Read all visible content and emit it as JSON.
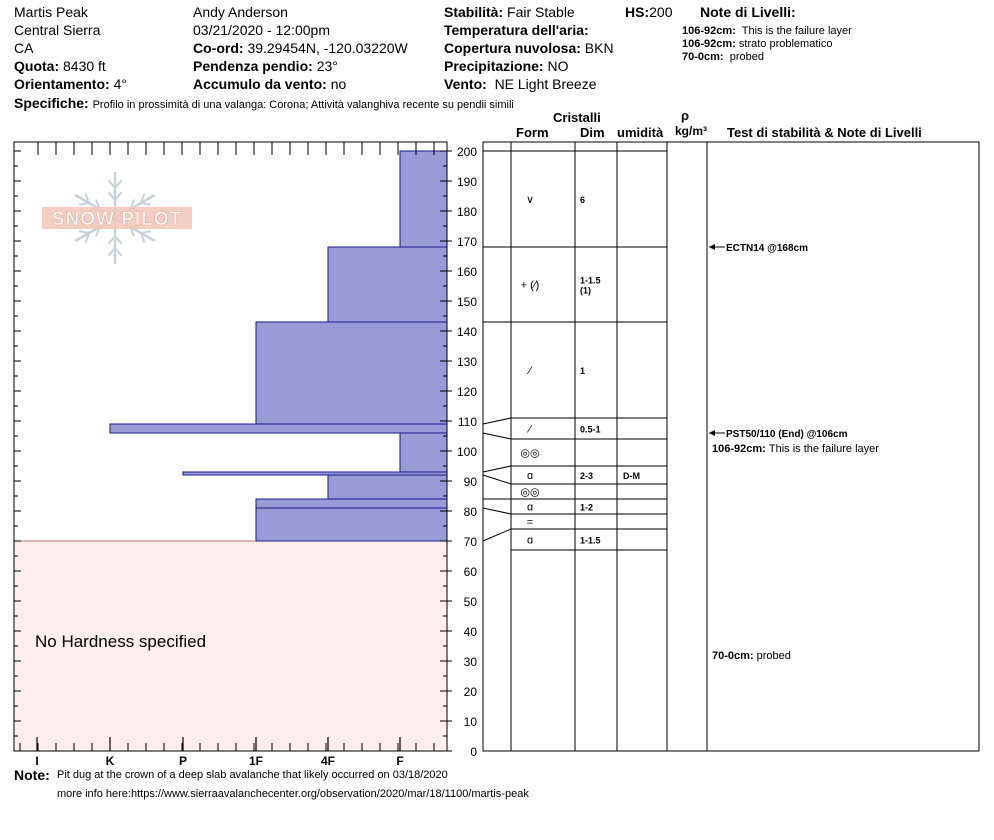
{
  "header": {
    "location": "Martis Peak",
    "range": "Central Sierra",
    "state": "CA",
    "elevation_label": "Quota:",
    "elevation_value": "8430 ft",
    "aspect_label": "Orientamento:",
    "aspect_value": "4°",
    "observer": "Andy Anderson",
    "datetime": "03/21/2020 - 12:00pm",
    "coord_label": "Co-ord:",
    "coord_value": "39.29454N, -120.03220W",
    "slope_label": "Pendenza pendio:",
    "slope_value": "23°",
    "wind_loading_label": "Accumulo da vento:",
    "wind_loading_value": "no",
    "stability_label": "Stabilità:",
    "stability_value": "Fair Stable",
    "hs_label": "HS:",
    "hs_value": "200",
    "air_temp_label": "Temperatura dell'aria:",
    "sky_label": "Copertura nuvolosa:",
    "sky_value": "BKN",
    "precip_label": "Precipitazione:",
    "precip_value": "NO",
    "wind_label": "Vento:",
    "wind_value": "NE Light Breeze",
    "layer_notes_title": "Note di Livelli:",
    "layer_notes": [
      {
        "range": "106-92cm:",
        "text": "This is the failure layer"
      },
      {
        "range": "106-92cm:",
        "text": "strato problematico"
      },
      {
        "range": "70-0cm:",
        "text": "probed"
      }
    ],
    "specifics_label": "Specifiche:",
    "specifics_value": "Profilo in prossimità di una valanga: Corona;  Attività valanghiva recente su pendii simili"
  },
  "columns": {
    "crystals": "Cristalli",
    "form": "Form",
    "size": "Dim",
    "moisture": "umidità",
    "rho": "ρ",
    "density_unit": "kg/m³",
    "tests": "Test di stabilità & Note di Livelli"
  },
  "logo": "SNOW PILOT",
  "no_hardness_label": "No Hardness specified",
  "footer": {
    "label": "Note:",
    "line1": "Pit dug at the crown of a deep slab avalanche that likely occurred on 03/18/2020",
    "line2": "more info here:https://www.sierraavalanchecenter.org/observation/2020/mar/18/1100/martis-peak"
  },
  "tests": [
    {
      "text": "ECTN14 @168cm",
      "depth": 168
    },
    {
      "text": "PST50/110 (End) @106cm",
      "depth": 106
    }
  ],
  "notes_right": [
    {
      "range": "106-92cm:",
      "text": "This is the failure layer",
      "depth": 101
    },
    {
      "range": "70-0cm:",
      "text": "probed",
      "depth": 32
    }
  ],
  "colors": {
    "hardness_fill": "#9a9ad6",
    "hardness_stroke": "#1a1a8a",
    "no_hardness_fill": "#fdeeee",
    "logo": "#f3c6b8"
  },
  "chart_data": {
    "type": "bar",
    "title": "",
    "xlabel": "",
    "ylabel": "",
    "ylim": [
      0,
      200
    ],
    "y_ticks": [
      0,
      10,
      20,
      30,
      40,
      50,
      60,
      70,
      80,
      90,
      100,
      110,
      120,
      130,
      140,
      150,
      160,
      170,
      180,
      190,
      200
    ],
    "hardness_scale": [
      "I",
      "K",
      "P",
      "1F",
      "4F",
      "F"
    ],
    "hardness_layers": [
      {
        "top": 200,
        "bottom": 168,
        "hardness": "F"
      },
      {
        "top": 168,
        "bottom": 143,
        "hardness": "4F"
      },
      {
        "top": 143,
        "bottom": 109,
        "hardness": "1F"
      },
      {
        "top": 109,
        "bottom": 106,
        "hardness": "K"
      },
      {
        "top": 106,
        "bottom": 93,
        "hardness": "F"
      },
      {
        "top": 93,
        "bottom": 92,
        "hardness": "P"
      },
      {
        "top": 92,
        "bottom": 84,
        "hardness": "4F"
      },
      {
        "top": 84,
        "bottom": 81,
        "hardness": "1F"
      },
      {
        "top": 81,
        "bottom": 70,
        "hardness": "1F"
      }
    ],
    "no_hardness_range": [
      0,
      70
    ],
    "layers": [
      {
        "top": 200,
        "bottom": 168,
        "form": "∨",
        "size": "6",
        "moisture": ""
      },
      {
        "top": 168,
        "bottom": 143,
        "form": "+ (⁄)",
        "size": "1-1.5 (1)",
        "moisture": ""
      },
      {
        "top": 143,
        "bottom": 111,
        "form": "⁄",
        "size": "1",
        "moisture": ""
      },
      {
        "top": 111,
        "bottom": 104,
        "form": "⁄",
        "size": "0.5-1",
        "moisture": ""
      },
      {
        "top": 104,
        "bottom": 95,
        "form": "◎◎",
        "size": "",
        "moisture": ""
      },
      {
        "top": 95,
        "bottom": 89,
        "form": "ɑ",
        "size": "2-3",
        "moisture": "D-M"
      },
      {
        "top": 89,
        "bottom": 84,
        "form": "◎◎",
        "size": "",
        "moisture": ""
      },
      {
        "top": 84,
        "bottom": 79,
        "form": "ɑ",
        "size": "1-2",
        "moisture": ""
      },
      {
        "top": 79,
        "bottom": 74,
        "form": "=",
        "size": "",
        "moisture": ""
      },
      {
        "top": 74,
        "bottom": 67,
        "form": "ɑ",
        "size": "1-1.5",
        "moisture": ""
      }
    ]
  }
}
